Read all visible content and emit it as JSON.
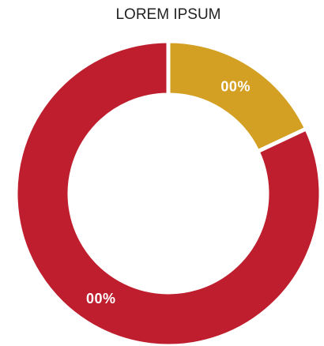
{
  "chart_data": {
    "type": "donut",
    "title": "LOREM IPSUM",
    "values": [
      18,
      82
    ],
    "value_labels": [
      "00%",
      "00%"
    ],
    "colors": [
      "#d4a024",
      "#be1e2d"
    ]
  }
}
